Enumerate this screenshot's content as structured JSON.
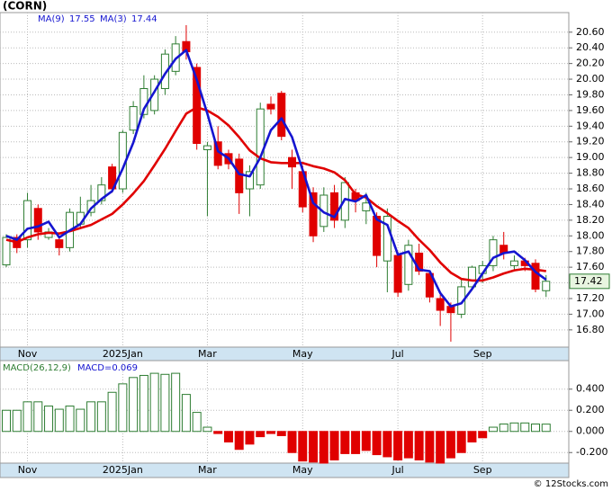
{
  "footer": "© 12Stocks.com",
  "chart_data": [
    {
      "type": "candlestick",
      "title": "(CORN)",
      "categories": [
        null,
        null,
        "Nov",
        null,
        null,
        null,
        null,
        null,
        null,
        null,
        null,
        "2025Jan",
        null,
        null,
        null,
        null,
        null,
        null,
        null,
        "Mar",
        null,
        null,
        null,
        null,
        null,
        null,
        null,
        null,
        "May",
        null,
        null,
        null,
        null,
        null,
        null,
        null,
        null,
        "Jul",
        null,
        null,
        null,
        null,
        null,
        null,
        null,
        "Sep",
        null,
        null,
        null,
        null,
        null,
        null
      ],
      "open": [
        17.63,
        17.98,
        17.95,
        18.35,
        17.98,
        17.95,
        17.85,
        18.15,
        18.3,
        18.45,
        18.88,
        18.6,
        19.35,
        19.55,
        19.6,
        19.88,
        20.1,
        20.48,
        20.15,
        19.1,
        19.2,
        19.05,
        18.98,
        18.6,
        18.65,
        19.68,
        19.82,
        19.0,
        18.82,
        18.55,
        18.12,
        18.55,
        18.2,
        18.55,
        18.32,
        18.25,
        17.68,
        17.75,
        17.38,
        17.78,
        17.52,
        17.2,
        17.1,
        17.0,
        17.35,
        17.52,
        17.62,
        17.88,
        17.62,
        17.68,
        17.65,
        17.3
      ],
      "high": [
        18.02,
        18.02,
        18.55,
        18.4,
        18.1,
        18.0,
        18.35,
        18.5,
        18.65,
        18.75,
        18.92,
        19.35,
        19.72,
        20.05,
        20.05,
        20.38,
        20.55,
        20.69,
        20.2,
        19.2,
        19.4,
        19.1,
        19.05,
        18.9,
        19.7,
        19.78,
        19.85,
        19.1,
        18.9,
        18.62,
        18.62,
        18.65,
        18.75,
        18.6,
        18.55,
        18.3,
        18.35,
        17.8,
        17.95,
        17.9,
        17.55,
        17.25,
        17.15,
        17.45,
        17.62,
        17.68,
        18.0,
        18.05,
        17.75,
        17.72,
        17.7,
        17.5
      ],
      "low": [
        17.6,
        17.78,
        17.85,
        17.95,
        17.95,
        17.75,
        17.8,
        18.1,
        18.25,
        18.4,
        18.55,
        18.55,
        19.3,
        19.5,
        19.55,
        19.8,
        20.05,
        20.25,
        19.1,
        18.25,
        18.85,
        18.85,
        18.28,
        18.25,
        18.6,
        19.55,
        19.22,
        18.6,
        18.3,
        17.92,
        18.05,
        18.1,
        18.1,
        18.3,
        18.15,
        17.6,
        17.28,
        17.22,
        17.3,
        17.5,
        17.15,
        16.85,
        16.65,
        16.95,
        17.3,
        17.4,
        17.55,
        17.7,
        17.55,
        17.55,
        17.28,
        17.22
      ],
      "close": [
        17.98,
        17.85,
        18.45,
        18.05,
        18.05,
        17.85,
        18.3,
        18.3,
        18.45,
        18.65,
        18.6,
        19.32,
        19.65,
        19.88,
        20.0,
        20.32,
        20.45,
        20.35,
        19.18,
        19.15,
        18.9,
        18.92,
        18.55,
        18.82,
        19.62,
        19.62,
        19.27,
        18.88,
        18.37,
        18.0,
        18.52,
        18.2,
        18.68,
        18.45,
        18.42,
        17.75,
        18.25,
        17.28,
        17.88,
        17.55,
        17.22,
        17.05,
        17.02,
        17.35,
        17.6,
        17.62,
        17.95,
        17.78,
        17.68,
        17.62,
        17.32,
        17.42
      ],
      "up_color": "#2e7d32",
      "down_color": "#e00000",
      "series": [
        {
          "name": "MA(9)",
          "last": 17.55,
          "color": "#e00000",
          "values": [
            17.95,
            17.92,
            17.98,
            18.02,
            18.04,
            18.03,
            18.06,
            18.1,
            18.14,
            18.21,
            18.28,
            18.4,
            18.54,
            18.7,
            18.9,
            19.11,
            19.34,
            19.56,
            19.64,
            19.6,
            19.52,
            19.41,
            19.26,
            19.09,
            18.99,
            18.94,
            18.93,
            18.93,
            18.93,
            18.89,
            18.86,
            18.81,
            18.71,
            18.53,
            18.49,
            18.38,
            18.29,
            18.19,
            18.1,
            17.95,
            17.82,
            17.66,
            17.53,
            17.45,
            17.43,
            17.43,
            17.47,
            17.52,
            17.56,
            17.58,
            17.57,
            17.55
          ]
        },
        {
          "name": "MA(3)",
          "last": 17.44,
          "color": "#1515d0",
          "values": [
            18.0,
            17.95,
            18.09,
            18.12,
            18.18,
            17.98,
            18.07,
            18.15,
            18.35,
            18.47,
            18.57,
            18.86,
            19.19,
            19.62,
            19.84,
            20.07,
            20.26,
            20.37,
            19.99,
            19.56,
            19.08,
            18.99,
            18.79,
            18.76,
            19.0,
            19.35,
            19.5,
            19.26,
            18.84,
            18.42,
            18.3,
            18.24,
            18.47,
            18.44,
            18.52,
            18.21,
            18.14,
            17.76,
            17.8,
            17.57,
            17.55,
            17.27,
            17.1,
            17.14,
            17.32,
            17.52,
            17.72,
            17.78,
            17.8,
            17.69,
            17.54,
            17.44
          ]
        }
      ],
      "last_price": 17.42,
      "ylim": [
        16.58,
        20.85
      ],
      "yticks": [
        {
          "value": 16.8,
          "label": "16.80"
        },
        {
          "value": 17,
          "label": "17.00"
        },
        {
          "value": 17.2,
          "label": "17.20"
        },
        {
          "value": 17.4,
          "label": "17.40"
        },
        {
          "value": 17.6,
          "label": "17.60"
        },
        {
          "value": 17.8,
          "label": "17.80"
        },
        {
          "value": 18,
          "label": "18.00"
        },
        {
          "value": 18.2,
          "label": "18.20"
        },
        {
          "value": 18.4,
          "label": "18.40"
        },
        {
          "value": 18.6,
          "label": "18.60"
        },
        {
          "value": 18.8,
          "label": "18.80"
        },
        {
          "value": 19,
          "label": "19.00"
        },
        {
          "value": 19.2,
          "label": "19.20"
        },
        {
          "value": 19.4,
          "label": "19.40"
        },
        {
          "value": 19.6,
          "label": "19.60"
        },
        {
          "value": 19.8,
          "label": "19.80"
        },
        {
          "value": 20,
          "label": "20.00"
        },
        {
          "value": 20.2,
          "label": "20.20"
        },
        {
          "value": 20.4,
          "label": "20.40"
        },
        {
          "value": 20.6,
          "label": "20.60"
        }
      ],
      "grid": true
    },
    {
      "type": "bar",
      "title": "MACD(26,12,9)",
      "annotation": "MACD=0.069",
      "values": [
        0.2,
        0.2,
        0.28,
        0.28,
        0.24,
        0.21,
        0.24,
        0.21,
        0.28,
        0.28,
        0.37,
        0.45,
        0.51,
        0.53,
        0.55,
        0.54,
        0.55,
        0.35,
        0.18,
        0.04,
        -0.02,
        -0.1,
        -0.17,
        -0.12,
        -0.05,
        -0.02,
        -0.04,
        -0.2,
        -0.28,
        -0.29,
        -0.3,
        -0.27,
        -0.21,
        -0.21,
        -0.18,
        -0.22,
        -0.24,
        -0.27,
        -0.25,
        -0.27,
        -0.29,
        -0.3,
        -0.25,
        -0.2,
        -0.1,
        -0.06,
        0.04,
        0.07,
        0.08,
        0.08,
        0.07,
        0.069
      ],
      "up_color": "#2e7d32",
      "down_color": "#e00000",
      "ylim": [
        -0.3,
        0.67
      ],
      "yticks": [
        {
          "value": -0.2,
          "label": "-0.200"
        },
        {
          "value": 0,
          "label": "0.000"
        },
        {
          "value": 0.2,
          "label": "0.200"
        },
        {
          "value": 0.4,
          "label": "0.400"
        }
      ],
      "grid": true
    }
  ]
}
